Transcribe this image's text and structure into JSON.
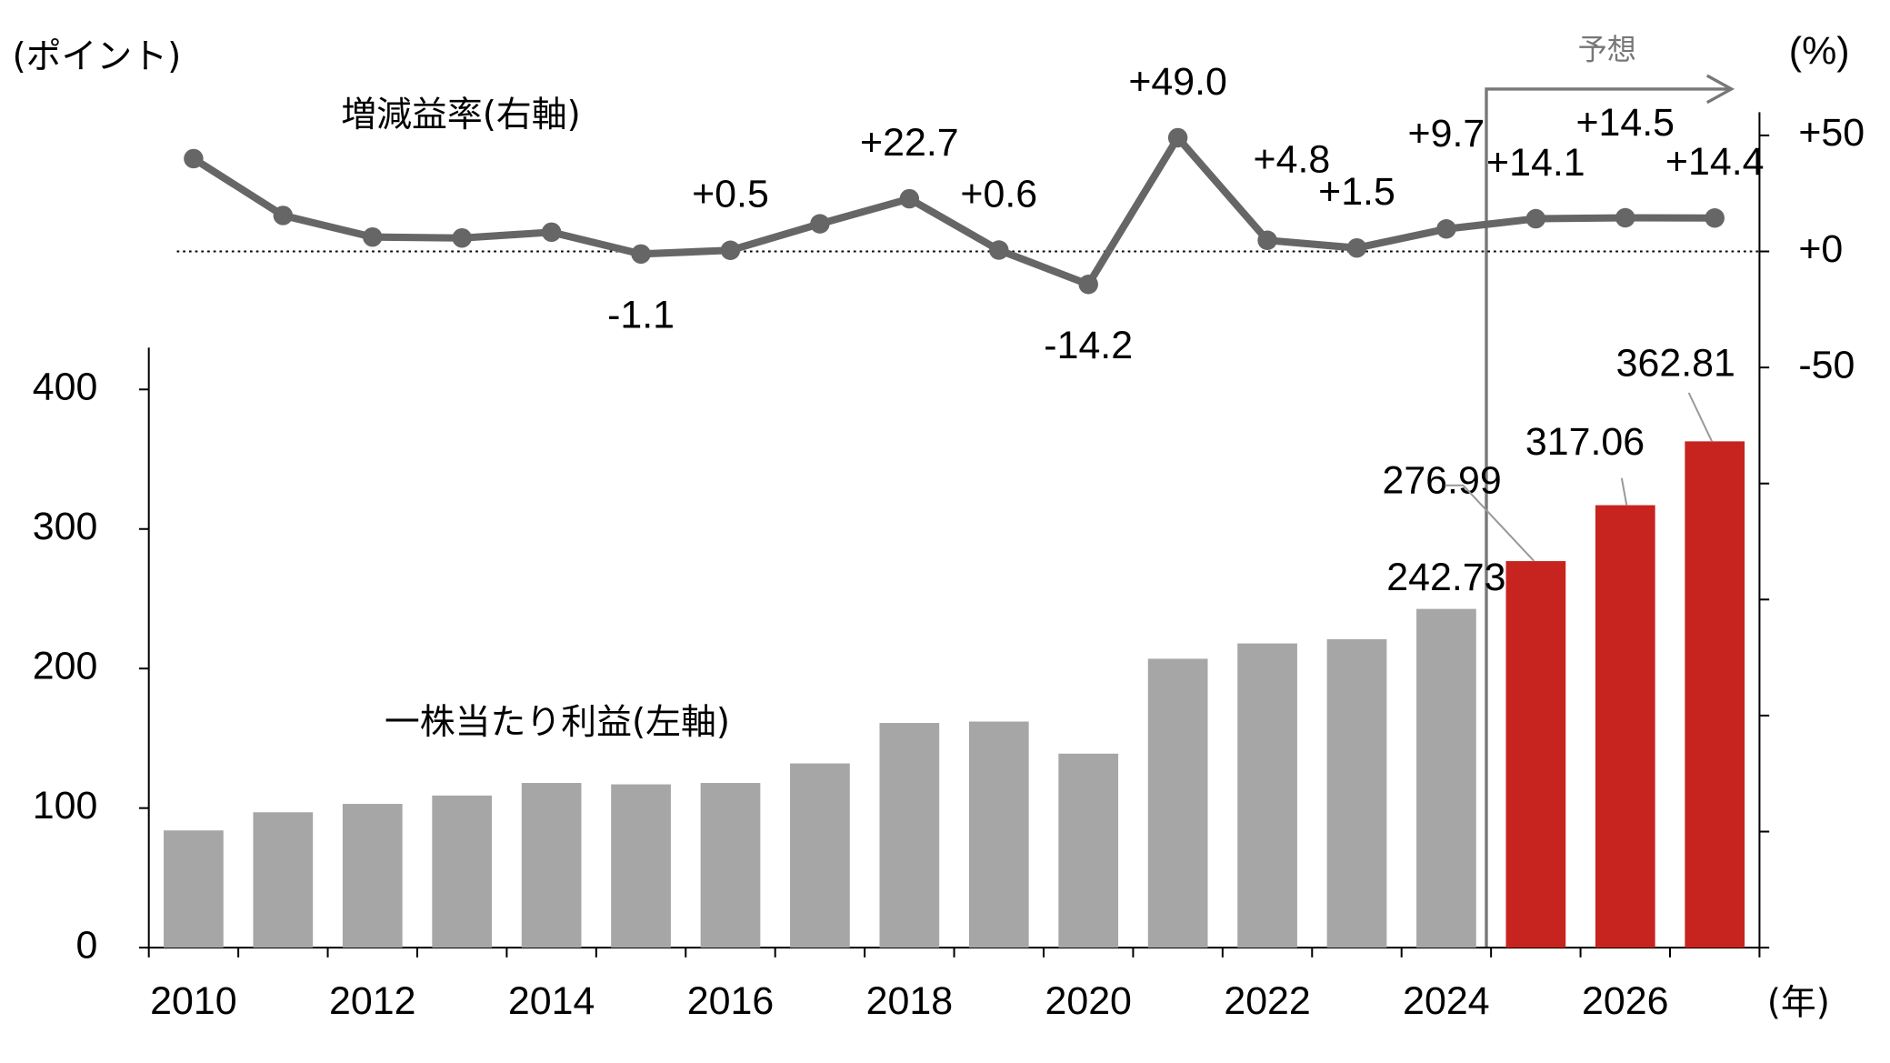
{
  "chart_data": [
    {
      "type": "bar",
      "series_label": "一株当たり利益(左軸)",
      "ylabel": "(ポイント)",
      "xlabel": "(年)",
      "categories": [
        "2010",
        null,
        "2012",
        null,
        "2014",
        null,
        "2016",
        null,
        "2018",
        null,
        "2020",
        null,
        "2022",
        null,
        "2024",
        null,
        "2026",
        null
      ],
      "values": [
        84,
        97,
        103,
        109,
        118,
        117,
        118,
        132,
        161,
        162,
        139,
        207,
        218,
        221,
        242.73,
        276.99,
        317.06,
        362.81
      ],
      "value_labels": [
        null,
        null,
        null,
        null,
        null,
        null,
        null,
        null,
        null,
        null,
        null,
        null,
        null,
        null,
        "242.73",
        "276.99",
        "317.06",
        "362.81"
      ],
      "colors": [
        "#a6a6a6",
        "#a6a6a6",
        "#a6a6a6",
        "#a6a6a6",
        "#a6a6a6",
        "#a6a6a6",
        "#a6a6a6",
        "#a6a6a6",
        "#a6a6a6",
        "#a6a6a6",
        "#a6a6a6",
        "#a6a6a6",
        "#a6a6a6",
        "#a6a6a6",
        "#a6a6a6",
        "#c8241f",
        "#c8241f",
        "#c8241f"
      ],
      "ylim": [
        0,
        430
      ],
      "yticks": [
        0,
        100,
        200,
        300,
        400
      ]
    },
    {
      "type": "line",
      "series_label": "増減益率(右軸)",
      "ylabel": "(%)",
      "forecast_label": "予想",
      "color": "#666666",
      "negative_color": "#ff0000",
      "values": [
        40,
        15.5,
        6.2,
        5.8,
        8.3,
        -1.1,
        0.5,
        11.9,
        22.7,
        0.6,
        -14.2,
        49.0,
        4.8,
        1.5,
        9.7,
        14.1,
        14.5,
        14.4
      ],
      "value_labels": [
        null,
        null,
        null,
        null,
        null,
        "-1.1",
        "+0.5",
        null,
        "+22.7",
        "+0.6",
        "-14.2",
        "+49.0",
        "+4.8",
        "+1.5",
        "+9.7",
        "+14.1",
        "+14.5",
        "+14.4"
      ],
      "y2lim": [
        -300,
        60
      ],
      "y2ticks": [
        {
          "value": 50,
          "label": "+50"
        },
        {
          "value": 0,
          "label": "+0"
        },
        {
          "value": -50,
          "label": "-50"
        }
      ],
      "y2minor_ticks": [
        -100,
        -150,
        -200,
        -250,
        -300
      ]
    }
  ]
}
